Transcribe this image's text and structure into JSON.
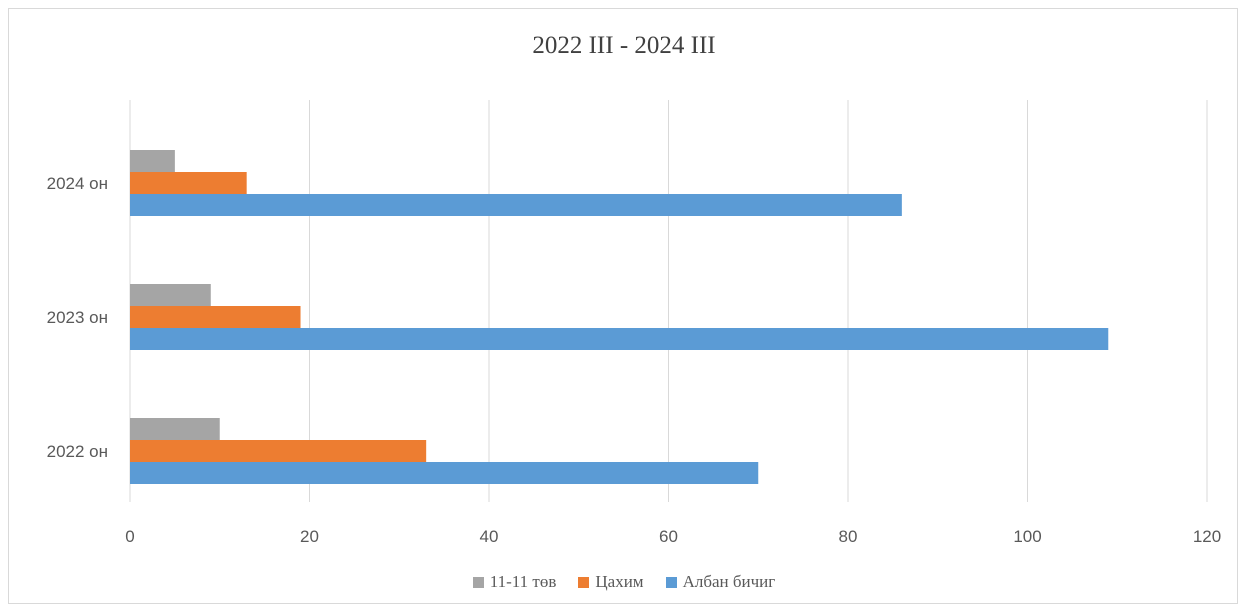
{
  "chart_data": {
    "type": "bar",
    "orientation": "horizontal",
    "title": "2022 III - 2024 III",
    "categories": [
      "2022 он",
      "2023 он",
      "2024 он"
    ],
    "series": [
      {
        "name": "11-11 төв",
        "color": "#a5a5a5",
        "values": [
          10,
          9,
          5
        ]
      },
      {
        "name": "Цахим",
        "color": "#ed7d31",
        "values": [
          33,
          19,
          13
        ]
      },
      {
        "name": "Албан бичиг",
        "color": "#5b9bd5",
        "values": [
          70,
          109,
          86
        ]
      }
    ],
    "xlim": [
      0,
      120
    ],
    "xticks": [
      0,
      20,
      40,
      60,
      80,
      100,
      120
    ],
    "grid": "vertical",
    "legend": "bottom"
  }
}
